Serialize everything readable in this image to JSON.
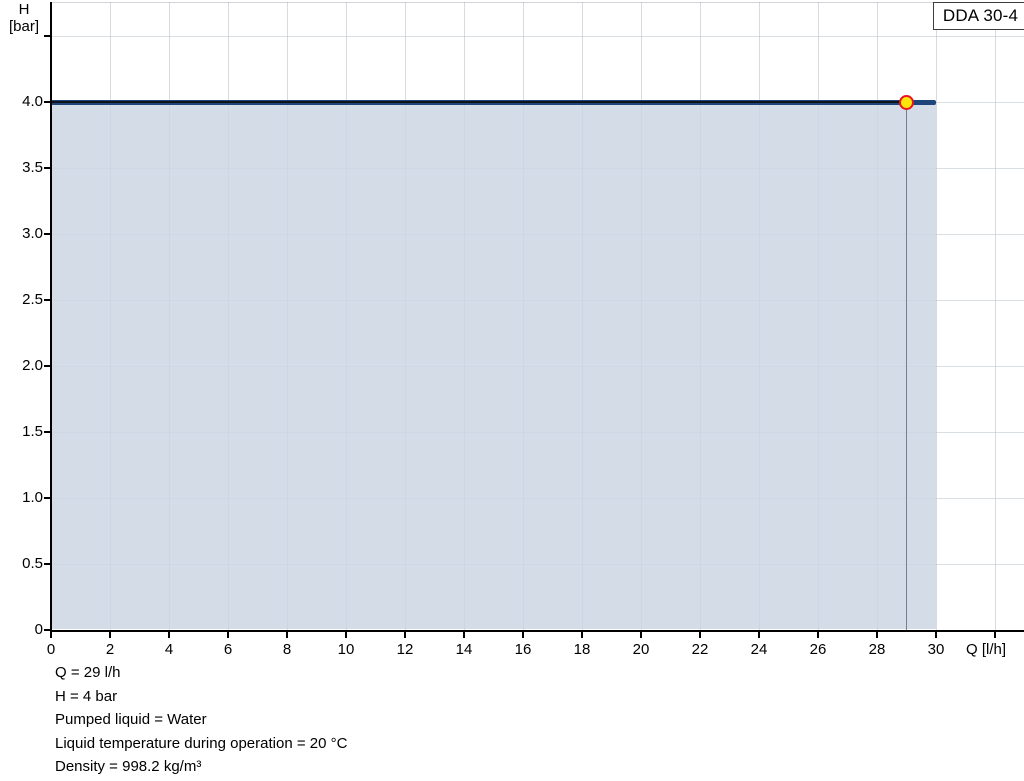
{
  "model_box": {
    "label": "DDA 30-4"
  },
  "y_axis": {
    "unit_line1": "H",
    "unit_line2": "[bar]",
    "ticks": [
      {
        "v": 0,
        "label": "0"
      },
      {
        "v": 0.5,
        "label": "0.5"
      },
      {
        "v": 1.0,
        "label": "1.0"
      },
      {
        "v": 1.5,
        "label": "1.5"
      },
      {
        "v": 2.0,
        "label": "2.0"
      },
      {
        "v": 2.5,
        "label": "2.5"
      },
      {
        "v": 3.0,
        "label": "3.0"
      },
      {
        "v": 3.5,
        "label": "3.5"
      },
      {
        "v": 4.0,
        "label": "4.0"
      },
      {
        "v": 4.5,
        "label": ""
      }
    ]
  },
  "x_axis": {
    "unit_label": "Q [l/h]",
    "ticks": [
      {
        "v": 0,
        "label": "0"
      },
      {
        "v": 2,
        "label": "2"
      },
      {
        "v": 4,
        "label": "4"
      },
      {
        "v": 6,
        "label": "6"
      },
      {
        "v": 8,
        "label": "8"
      },
      {
        "v": 10,
        "label": "10"
      },
      {
        "v": 12,
        "label": "12"
      },
      {
        "v": 14,
        "label": "14"
      },
      {
        "v": 16,
        "label": "16"
      },
      {
        "v": 18,
        "label": "18"
      },
      {
        "v": 20,
        "label": "20"
      },
      {
        "v": 22,
        "label": "22"
      },
      {
        "v": 24,
        "label": "24"
      },
      {
        "v": 26,
        "label": "26"
      },
      {
        "v": 28,
        "label": "28"
      },
      {
        "v": 30,
        "label": "30"
      },
      {
        "v": 32,
        "label": ""
      }
    ]
  },
  "info_lines": [
    "Q = 29 l/h",
    "H = 4 bar",
    "Pumped liquid = Water",
    "Liquid temperature during operation = 20 °C",
    "Density = 998.2 kg/m³"
  ],
  "chart_data": {
    "type": "area",
    "title": "DDA 30-4 pump performance curve",
    "xlabel": "Q [l/h]",
    "ylabel": "H [bar]",
    "xlim": [
      0,
      33
    ],
    "ylim": [
      0,
      4.76
    ],
    "grid": true,
    "series": [
      {
        "name": "DDA 30-4",
        "x": [
          0,
          30
        ],
        "y": [
          4.0,
          4.0
        ],
        "fill_to_zero": true
      }
    ],
    "operating_point": {
      "q": 29,
      "h": 4.0
    },
    "colors": {
      "curve": "#1d4579",
      "area_fill": "#d3dce6",
      "marker_fill": "#ffe60a",
      "marker_ring": "#e8141e",
      "reference_vertical": "#74808c",
      "reference_horizontal": "#10141a",
      "grid": "#d9dde2",
      "axis": "#000000"
    }
  }
}
